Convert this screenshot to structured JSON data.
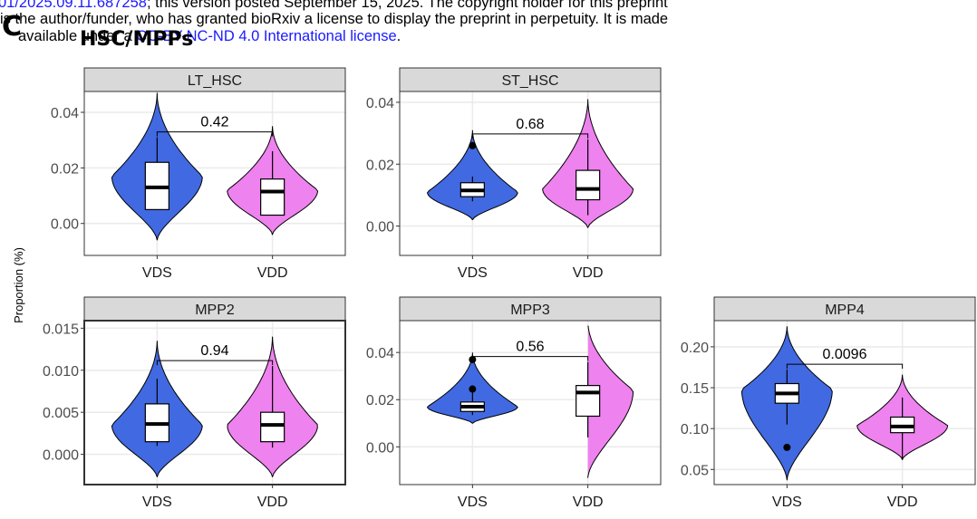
{
  "header": {
    "line1_link": "01/2025.09.11.687258",
    "line1_text": "; this version posted September 15, 2025. The copyright holder for this preprint",
    "line2_text": "is the author/funder, who has granted bioRxiv a license to display the preprint in perpetuity. It is made",
    "line3_text": "available under a",
    "line3_link": "CC-BY-NC-ND 4.0 International license",
    "line3_end": "."
  },
  "panel_letter": "C",
  "section_title": "HSC/MPPs",
  "colors": {
    "VDS": "#4169e1",
    "VDD": "#ee82ee",
    "strip": "#d9d9d9",
    "grid": "#ebebeb"
  },
  "chart_data": {
    "type": "violin",
    "ylabel": "Proportion (%)",
    "groups": [
      "VDS",
      "VDD"
    ],
    "panels": [
      {
        "title": "LT_HSC",
        "yticks": [
          "0.04",
          "0.02",
          "0.00"
        ],
        "yvals": [
          0.04,
          0.02,
          0.0
        ],
        "ylim": [
          -0.0115,
          0.0475
        ],
        "pvalue": "0.42",
        "boxes": {
          "VDS": {
            "min": 0.005,
            "q1": 0.005,
            "median": 0.013,
            "q3": 0.022,
            "max": 0.031
          },
          "VDD": {
            "min": 0.003,
            "q1": 0.003,
            "median": 0.0115,
            "q3": 0.016,
            "max": 0.026
          }
        },
        "outliers": {
          "VDS": [],
          "VDD": []
        },
        "violin": {
          "VDS": {
            "min": -0.006,
            "max": 0.047,
            "mode": 0.017
          },
          "VDD": {
            "min": -0.004,
            "max": 0.035,
            "mode": 0.012
          }
        }
      },
      {
        "title": "ST_HSC",
        "yticks": [
          "0.04",
          "0.02",
          "0.00"
        ],
        "yvals": [
          0.04,
          0.02,
          0.0
        ],
        "ylim": [
          -0.0095,
          0.0435
        ],
        "pvalue": "0.68",
        "boxes": {
          "VDS": {
            "min": 0.008,
            "q1": 0.0095,
            "median": 0.0115,
            "q3": 0.014,
            "max": 0.016
          },
          "VDD": {
            "min": 0.0035,
            "q1": 0.0085,
            "median": 0.012,
            "q3": 0.018,
            "max": 0.028
          }
        },
        "outliers": {
          "VDS": [
            0.026
          ],
          "VDD": []
        },
        "violin": {
          "VDS": {
            "min": 0.002,
            "max": 0.031,
            "mode": 0.011
          },
          "VDD": {
            "min": -0.0005,
            "max": 0.041,
            "mode": 0.012
          }
        }
      },
      {
        "title": "MPP2",
        "yticks": [
          "0.015",
          "0.010",
          "0.005",
          "0.000"
        ],
        "yvals": [
          0.015,
          0.01,
          0.005,
          0.0
        ],
        "ylim": [
          -0.0036,
          0.0159
        ],
        "pvalue": "0.94",
        "boxes": {
          "VDS": {
            "min": 0.001,
            "q1": 0.0015,
            "median": 0.0036,
            "q3": 0.006,
            "max": 0.009
          },
          "VDD": {
            "min": 0.0008,
            "q1": 0.0015,
            "median": 0.0035,
            "q3": 0.005,
            "max": 0.0105
          }
        },
        "outliers": {
          "VDS": [],
          "VDD": []
        },
        "violin": {
          "VDS": {
            "min": -0.0027,
            "max": 0.0135,
            "mode": 0.0035
          },
          "VDD": {
            "min": -0.0027,
            "max": 0.014,
            "mode": 0.0035
          }
        }
      },
      {
        "title": "MPP3",
        "yticks": [
          "0.04",
          "0.02",
          "0.00"
        ],
        "yvals": [
          0.04,
          0.02,
          0.0
        ],
        "ylim": [
          -0.016,
          0.0535
        ],
        "pvalue": "0.56",
        "boxes": {
          "VDS": {
            "min": 0.0135,
            "q1": 0.015,
            "median": 0.017,
            "q3": 0.019,
            "max": 0.024
          },
          "VDD": {
            "min": 0.004,
            "q1": 0.013,
            "median": 0.023,
            "q3": 0.026,
            "max": 0.036
          }
        },
        "outliers": {
          "VDS": [
            0.037,
            0.0245
          ],
          "VDD": []
        },
        "violin": {
          "VDS": {
            "min": 0.01,
            "max": 0.04,
            "mode": 0.017
          },
          "VDD": {
            "min": -0.013,
            "max": 0.053,
            "mode": 0.024
          }
        }
      },
      {
        "title": "MPP4",
        "yticks": [
          "0.20",
          "0.15",
          "0.10",
          "0.05"
        ],
        "yvals": [
          0.2,
          0.15,
          0.1,
          0.05
        ],
        "ylim": [
          0.0315,
          0.232
        ],
        "pvalue": "0.0096",
        "boxes": {
          "VDS": {
            "min": 0.105,
            "q1": 0.131,
            "median": 0.143,
            "q3": 0.155,
            "max": 0.172
          },
          "VDD": {
            "min": 0.063,
            "q1": 0.095,
            "median": 0.1025,
            "q3": 0.114,
            "max": 0.138
          }
        },
        "outliers": {
          "VDS": [
            0.077
          ],
          "VDD": []
        },
        "violin": {
          "VDS": {
            "min": 0.037,
            "max": 0.225,
            "mode": 0.148
          },
          "VDD": {
            "min": 0.062,
            "max": 0.166,
            "mode": 0.104
          }
        }
      }
    ]
  }
}
